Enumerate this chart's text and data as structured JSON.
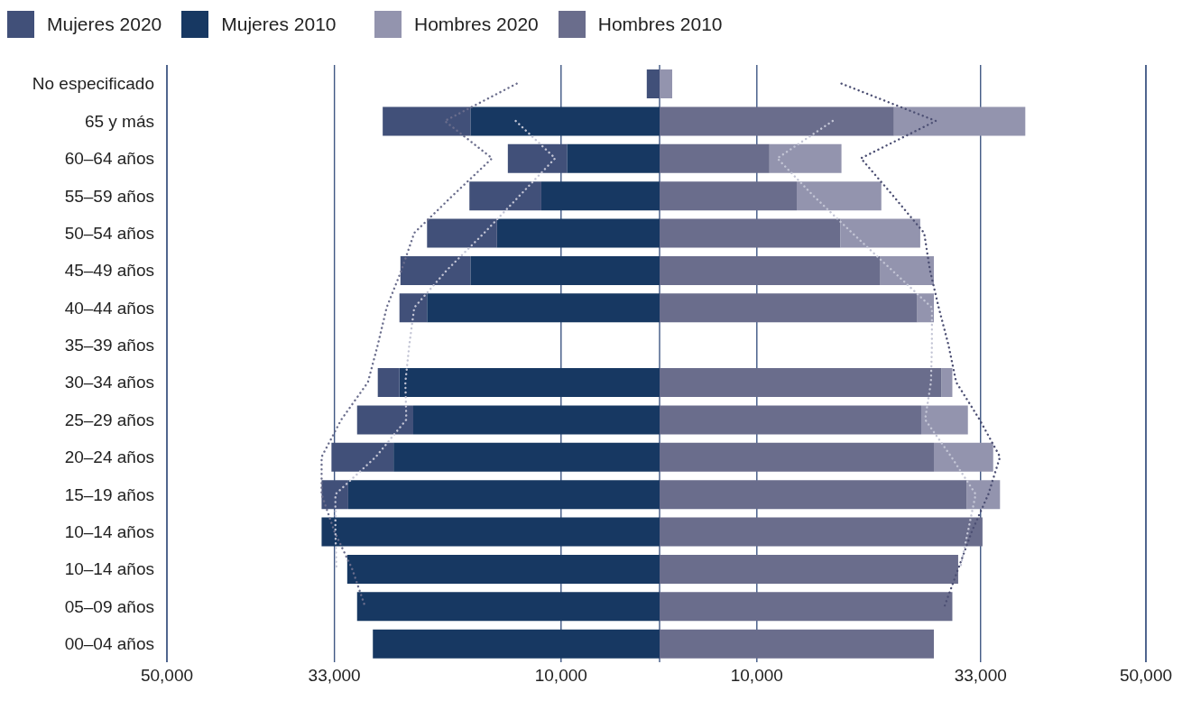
{
  "chart_data": [
    {
      "type": "bar",
      "orientation": "horizontal",
      "stacked": true,
      "categories": [
        "No especificado",
        "65 y más",
        "60–64 años",
        "55–59 años",
        "50–54 años",
        "45–49 años",
        "40–44 años",
        "35–39 años",
        "30–34 años",
        "25–29 años",
        "20–24 años",
        "15–19 años",
        "10–14 años",
        "10–14 años",
        "05–09 años",
        "00–04 años"
      ],
      "series": [
        {
          "name": "Mujeres 2010",
          "color": "#173862",
          "values": [
            null,
            19200,
            9400,
            12000,
            16500,
            19200,
            23600,
            null,
            26400,
            25000,
            27000,
            31600,
            34300,
            31700,
            30700,
            29100
          ]
        },
        {
          "name": "Mujeres 2020",
          "color": "#415079",
          "values": [
            1300,
            8900,
            6000,
            7300,
            7100,
            7100,
            2800,
            null,
            2200,
            5700,
            6300,
            2700,
            null,
            null,
            null,
            null
          ]
        },
        {
          "type": "line",
          "color": "#6a6d8c",
          "line_style": "dotted",
          "marker": "none",
          "values": [
            14500,
            21800,
            17000,
            21000,
            24900,
            26200,
            27700,
            28600,
            29600,
            32300,
            34300,
            34300,
            33000,
            31200,
            29900,
            null
          ]
        },
        {
          "type": "line",
          "color": "#c3c5d5",
          "line_style": "dotted",
          "marker": "none",
          "values": [
            null,
            14600,
            10600,
            14200,
            17800,
            21600,
            24900,
            25400,
            25800,
            25700,
            28800,
            32900,
            32900,
            32800,
            null,
            null
          ]
        }
      ],
      "xlim": [
        50000,
        0
      ],
      "xticks": [
        {
          "value": 50000,
          "label": "50,000"
        },
        {
          "value": 33000,
          "label": "33,000"
        },
        {
          "value": 10000,
          "label": "10,000"
        }
      ],
      "grid": "x",
      "legend": "top left"
    },
    {
      "type": "bar",
      "orientation": "horizontal",
      "stacked": true,
      "categories": [
        null,
        null,
        null,
        null,
        null,
        null,
        null,
        null,
        null,
        null,
        null,
        null,
        null,
        null,
        null,
        null
      ],
      "series": [
        {
          "name": "Hombres 2010",
          "color": "#6a6d8c",
          "values": [
            null,
            24100,
            11300,
            14100,
            18600,
            22700,
            26500,
            null,
            29000,
            26900,
            28200,
            31600,
            33200,
            30700,
            30100,
            28200
          ]
        },
        {
          "name": "Hombres 2020",
          "color": "#9394ae",
          "values": [
            1300,
            13500,
            7400,
            8700,
            8200,
            5500,
            1700,
            null,
            1100,
            4800,
            6100,
            3400,
            null,
            null,
            null,
            null
          ]
        },
        {
          "type": "line",
          "color": "#4c4f73",
          "line_style": "dotted",
          "marker": "none",
          "values": [
            18700,
            28400,
            20700,
            24000,
            27200,
            27800,
            28700,
            29700,
            30500,
            32900,
            35000,
            33800,
            32100,
            30700,
            29300,
            null
          ]
        },
        {
          "type": "line",
          "color": "#c3c5d5",
          "line_style": "dotted",
          "marker": "none",
          "values": [
            null,
            17800,
            12100,
            15800,
            19800,
            23900,
            28000,
            28000,
            27900,
            27300,
            30000,
            32500,
            31700,
            30900,
            null,
            null
          ]
        }
      ],
      "xlim": [
        0,
        50000
      ],
      "xticks": [
        {
          "value": 10000,
          "label": "10,000"
        },
        {
          "value": 33000,
          "label": "33,000"
        },
        {
          "value": 50000,
          "label": "50,000"
        }
      ],
      "grid": "x",
      "legend": "top left",
      "tick_labels": "x"
    }
  ]
}
